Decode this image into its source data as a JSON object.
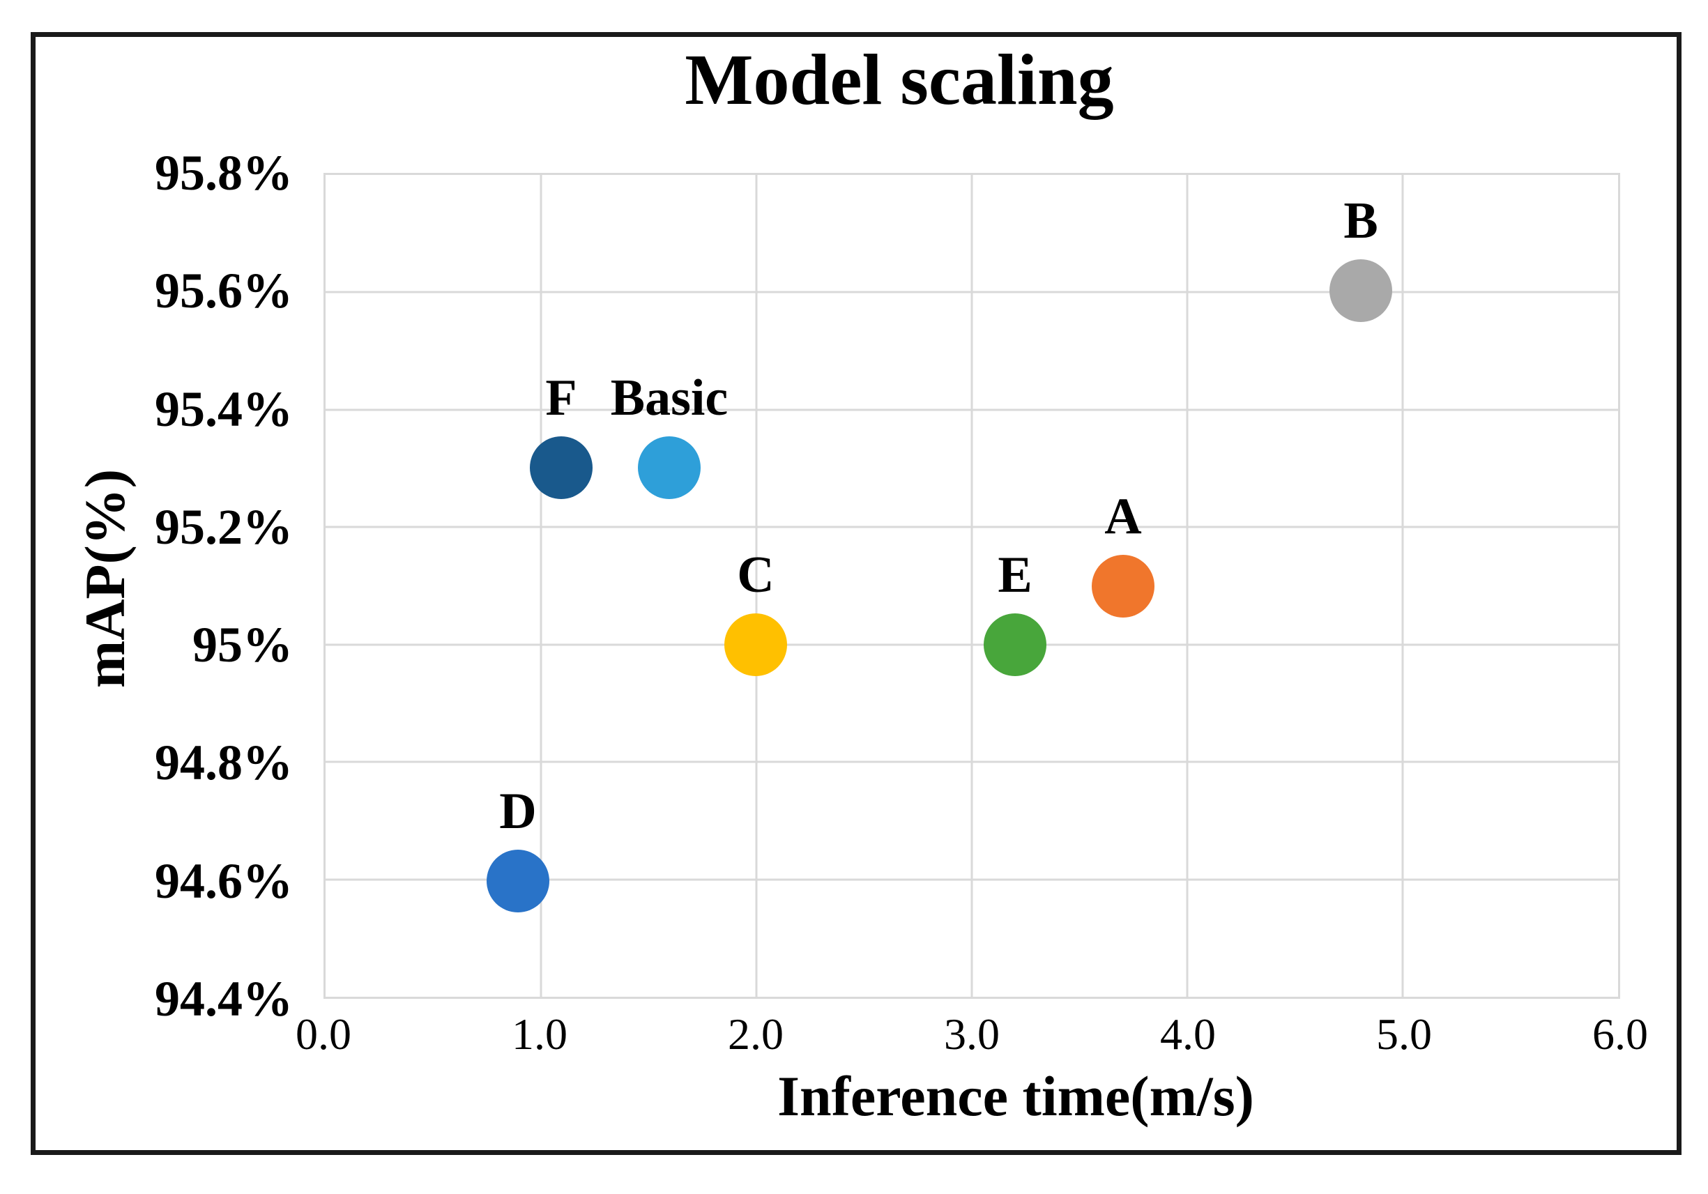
{
  "chart_data": {
    "type": "scatter",
    "title": "Model scaling",
    "xlabel": "Inference time(m/s)",
    "ylabel": "mAP(%)",
    "xlim": [
      0,
      6
    ],
    "ylim": [
      94.4,
      95.8
    ],
    "grid": true,
    "grid_color": "#D9D9D9",
    "x_ticks": [
      {
        "label": "0.0",
        "value": 0
      },
      {
        "label": "1.0",
        "value": 1
      },
      {
        "label": "2.0",
        "value": 2
      },
      {
        "label": "3.0",
        "value": 3
      },
      {
        "label": "4.0",
        "value": 4
      },
      {
        "label": "5.0",
        "value": 5
      },
      {
        "label": "6.0",
        "value": 6
      }
    ],
    "y_ticks": [
      {
        "label": "95.8%",
        "value": 95.8
      },
      {
        "label": "95.6%",
        "value": 95.6
      },
      {
        "label": "95.4%",
        "value": 95.4
      },
      {
        "label": "95.2%",
        "value": 95.2
      },
      {
        "label": "95%",
        "value": 95.0
      },
      {
        "label": "94.8%",
        "value": 94.8
      },
      {
        "label": "94.6%",
        "value": 94.6
      },
      {
        "label": "94.4%",
        "value": 94.4
      }
    ],
    "points": [
      {
        "label": "Basic",
        "x": 1.6,
        "y": 95.3,
        "color": "#2E9FD9"
      },
      {
        "label": "A",
        "x": 3.7,
        "y": 95.1,
        "color": "#F0762C"
      },
      {
        "label": "B",
        "x": 4.8,
        "y": 95.6,
        "color": "#A9A9A9"
      },
      {
        "label": "C",
        "x": 2.0,
        "y": 95.0,
        "color": "#FFC000"
      },
      {
        "label": "D",
        "x": 0.9,
        "y": 94.6,
        "color": "#2973C8"
      },
      {
        "label": "E",
        "x": 3.2,
        "y": 95.0,
        "color": "#48A63B"
      },
      {
        "label": "F",
        "x": 1.1,
        "y": 95.3,
        "color": "#19598C"
      }
    ]
  }
}
